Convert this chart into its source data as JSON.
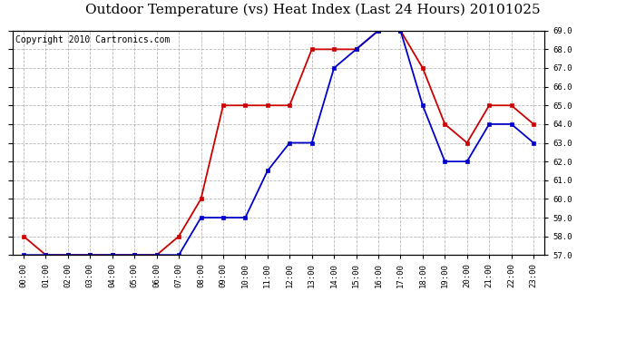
{
  "title": "Outdoor Temperature (vs) Heat Index (Last 24 Hours) 20101025",
  "copyright": "Copyright 2010 Cartronics.com",
  "x_labels": [
    "00:00",
    "01:00",
    "02:00",
    "03:00",
    "04:00",
    "05:00",
    "06:00",
    "07:00",
    "08:00",
    "09:00",
    "10:00",
    "11:00",
    "12:00",
    "13:00",
    "14:00",
    "15:00",
    "16:00",
    "17:00",
    "18:00",
    "19:00",
    "20:00",
    "21:00",
    "22:00",
    "23:00"
  ],
  "red_data": [
    58.0,
    57.0,
    57.0,
    57.0,
    57.0,
    57.0,
    57.0,
    58.0,
    60.0,
    65.0,
    65.0,
    65.0,
    65.0,
    68.0,
    68.0,
    68.0,
    69.0,
    69.0,
    67.0,
    64.0,
    63.0,
    65.0,
    65.0,
    64.0
  ],
  "blue_data": [
    57.0,
    57.0,
    57.0,
    57.0,
    57.0,
    57.0,
    57.0,
    57.0,
    59.0,
    59.0,
    59.0,
    61.5,
    63.0,
    63.0,
    67.0,
    68.0,
    69.0,
    69.0,
    65.0,
    62.0,
    62.0,
    64.0,
    64.0,
    63.0
  ],
  "red_color": "#cc0000",
  "blue_color": "#0000cc",
  "ylim_min": 57.0,
  "ylim_max": 69.0,
  "ytick_step": 1.0,
  "background_color": "#ffffff",
  "plot_bg_color": "#ffffff",
  "grid_color": "#b0b0b0",
  "title_fontsize": 11,
  "copyright_fontsize": 7,
  "marker_size": 3.5,
  "line_width": 1.3
}
